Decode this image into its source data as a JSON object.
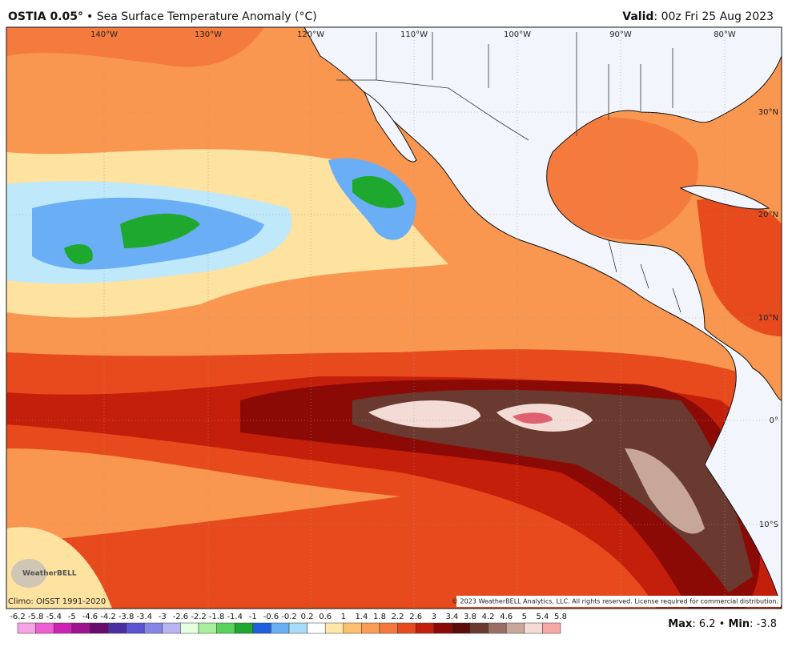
{
  "header": {
    "title": "OSTIA 0.05°",
    "subtitle": "• Sea Surface Temperature Anomaly (°C)",
    "valid_label": "Valid",
    "valid_value": ": 00z Fri 25 Aug 2023"
  },
  "map": {
    "longitude_labels": [
      "140°W",
      "130°W",
      "120°W",
      "110°W",
      "100°W",
      "90°W",
      "80°W"
    ],
    "latitude_labels": [
      "30°N",
      "20°N",
      "10°N",
      "0°",
      "10°S"
    ],
    "logo": "WeatherBELL",
    "climo": "Climo: OISST 1991-2020",
    "copyright": "© 2023 WeatherBELL Analytics, LLC. All rights reserved. License required for commercial distribution."
  },
  "colorbar": {
    "labels": [
      "-6.2",
      "-5.8",
      "-5.4",
      "-5",
      "-4.6",
      "-4.2",
      "-3.8",
      "-3.4",
      "-3",
      "-2.6",
      "-2.2",
      "-1.8",
      "-1.4",
      "-1",
      "-0.6",
      "-0.2",
      "0.2",
      "0.6",
      "1",
      "1.4",
      "1.8",
      "2.2",
      "2.6",
      "3",
      "3.4",
      "3.8",
      "4.2",
      "4.6",
      "5",
      "5.4",
      "5.8"
    ],
    "colors": [
      "#f7a3e6",
      "#ee5fd3",
      "#cf22b5",
      "#9c128f",
      "#6a0a6c",
      "#4b2ea3",
      "#5b55d6",
      "#8585e6",
      "#b9b4f2",
      "#e6ffe0",
      "#a8f0a0",
      "#58d35a",
      "#1fa82e",
      "#2060e0",
      "#6aaef5",
      "#a8dcf8",
      "#ffffff",
      "#ffe7a8",
      "#fdc070",
      "#fb9d55",
      "#f5793d",
      "#e74a1d",
      "#c41f0a",
      "#8c0a06",
      "#5a0c08",
      "#6a3a30",
      "#9a6e62",
      "#c9a69a",
      "#f4dcd6",
      "#f7a9a6"
    ]
  },
  "stats": {
    "max_label": "Max",
    "max_value": ": 6.2",
    "separator": " • ",
    "min_label": "Min",
    "min_value": ": -3.8"
  }
}
